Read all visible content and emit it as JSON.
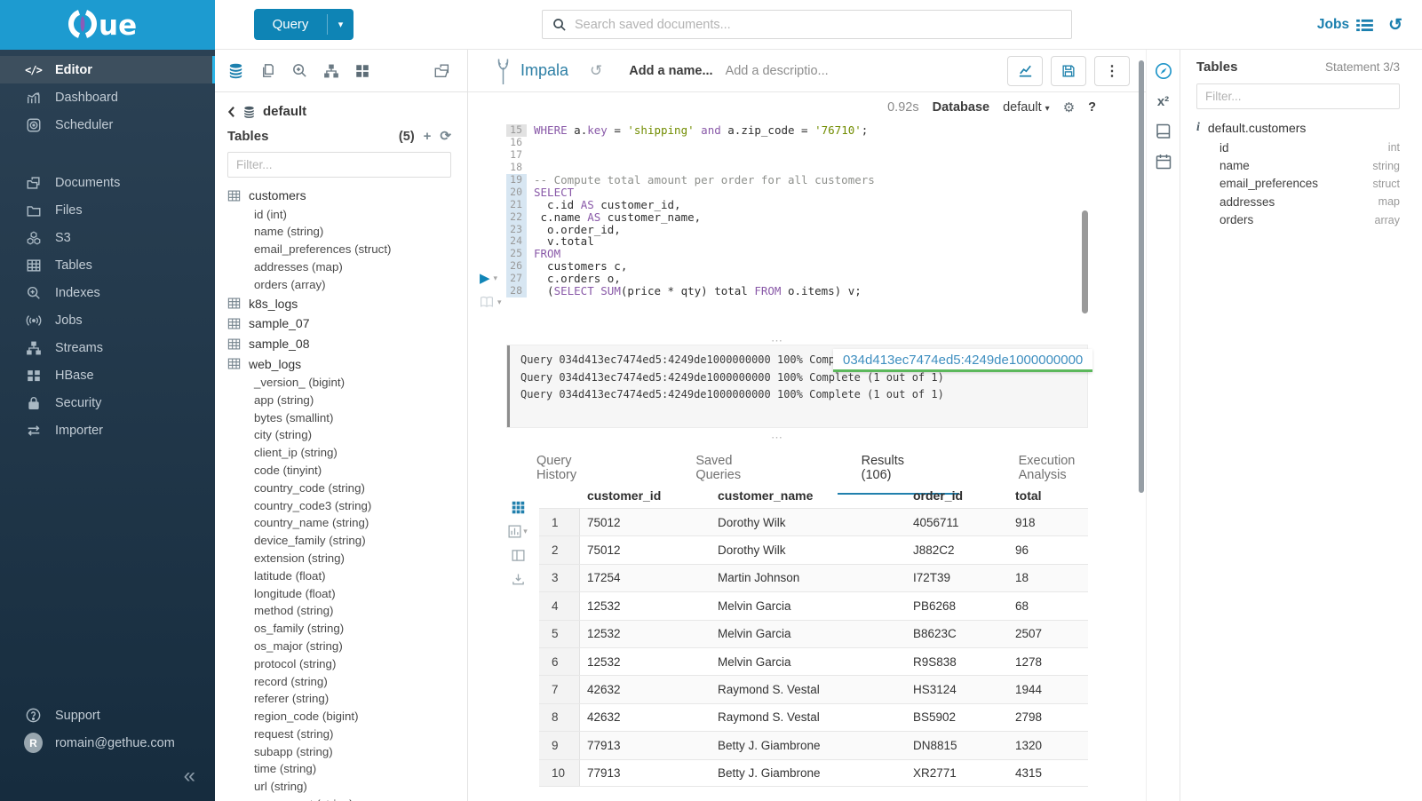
{
  "icons": {
    "caret_down": "▾",
    "ellipsis_v": "⋮",
    "resize_dots": "⋯",
    "history": "↺",
    "gear": "⚙",
    "help": "?",
    "collapse": "«",
    "plus": "+",
    "refresh": "⟳",
    "play": "▶",
    "info": "i",
    "code_tag": "</>",
    "jobs_waves": "((•))",
    "x_squared": "x²"
  },
  "colors": {
    "header_blue": "#1d9bd0",
    "button_blue": "#0e84b5",
    "link_blue": "#1a7fae",
    "sidebar_top": "#2b4154",
    "sidebar_bottom": "#162c3e",
    "sql_keyword": "#8959a8",
    "sql_string": "#718c00",
    "sql_comment": "#8e908c",
    "tooltip_link": "#3f8fc0",
    "tooltip_underline": "#5cb85c",
    "active_tab_underline": "#2180ad"
  },
  "topbar": {
    "query_button": "Query",
    "search_placeholder": "Search saved documents...",
    "jobs_label": "Jobs"
  },
  "sidebar": {
    "items": [
      {
        "label": "Editor"
      },
      {
        "label": "Dashboard"
      },
      {
        "label": "Scheduler"
      },
      {
        "label": "Documents"
      },
      {
        "label": "Files"
      },
      {
        "label": "S3"
      },
      {
        "label": "Tables"
      },
      {
        "label": "Indexes"
      },
      {
        "label": "Jobs"
      },
      {
        "label": "Streams"
      },
      {
        "label": "HBase"
      },
      {
        "label": "Security"
      },
      {
        "label": "Importer"
      }
    ],
    "support_label": "Support",
    "user_email": "romain@gethue.com",
    "avatar_initial": "R"
  },
  "dbpanel": {
    "breadcrumb_db": "default",
    "title": "Tables",
    "count": "(5)",
    "filter_placeholder": "Filter...",
    "tree": [
      {
        "kind": "table",
        "label": "customers"
      },
      {
        "kind": "column",
        "label": "id (int)"
      },
      {
        "kind": "column",
        "label": "name (string)"
      },
      {
        "kind": "column",
        "label": "email_preferences (struct)"
      },
      {
        "kind": "column",
        "label": "addresses (map)"
      },
      {
        "kind": "column",
        "label": "orders (array)"
      },
      {
        "kind": "table",
        "label": "k8s_logs"
      },
      {
        "kind": "table",
        "label": "sample_07"
      },
      {
        "kind": "table",
        "label": "sample_08"
      },
      {
        "kind": "table",
        "label": "web_logs"
      },
      {
        "kind": "column",
        "label": "_version_ (bigint)"
      },
      {
        "kind": "column",
        "label": "app (string)"
      },
      {
        "kind": "column",
        "label": "bytes (smallint)"
      },
      {
        "kind": "column",
        "label": "city (string)"
      },
      {
        "kind": "column",
        "label": "client_ip (string)"
      },
      {
        "kind": "column",
        "label": "code (tinyint)"
      },
      {
        "kind": "column",
        "label": "country_code (string)"
      },
      {
        "kind": "column",
        "label": "country_code3 (string)"
      },
      {
        "kind": "column",
        "label": "country_name (string)"
      },
      {
        "kind": "column",
        "label": "device_family (string)"
      },
      {
        "kind": "column",
        "label": "extension (string)"
      },
      {
        "kind": "column",
        "label": "latitude (float)"
      },
      {
        "kind": "column",
        "label": "longitude (float)"
      },
      {
        "kind": "column",
        "label": "method (string)"
      },
      {
        "kind": "column",
        "label": "os_family (string)"
      },
      {
        "kind": "column",
        "label": "os_major (string)"
      },
      {
        "kind": "column",
        "label": "protocol (string)"
      },
      {
        "kind": "column",
        "label": "record (string)"
      },
      {
        "kind": "column",
        "label": "referer (string)"
      },
      {
        "kind": "column",
        "label": "region_code (bigint)"
      },
      {
        "kind": "column",
        "label": "request (string)"
      },
      {
        "kind": "column",
        "label": "subapp (string)"
      },
      {
        "kind": "column",
        "label": "time (string)"
      },
      {
        "kind": "column",
        "label": "url (string)"
      },
      {
        "kind": "column",
        "label": "user_agent (string)"
      }
    ]
  },
  "editor": {
    "engine": "Impala",
    "name_placeholder": "Add a name...",
    "description_placeholder": "Add a descriptio...",
    "exec_time": "0.92s",
    "database_label": "Database",
    "database_value": "default",
    "code_lines": [
      {
        "n": "15",
        "hl": "cur",
        "text": "WHERE a.key = 'shipping' and a.zip_code = '76710';"
      },
      {
        "n": "16",
        "hl": "",
        "text": ""
      },
      {
        "n": "17",
        "hl": "",
        "text": ""
      },
      {
        "n": "18",
        "hl": "",
        "text": ""
      },
      {
        "n": "19",
        "hl": "stmt",
        "text": "-- Compute total amount per order for all customers"
      },
      {
        "n": "20",
        "hl": "stmt",
        "text": "SELECT"
      },
      {
        "n": "21",
        "hl": "stmt",
        "text": "  c.id AS customer_id,"
      },
      {
        "n": "22",
        "hl": "stmt",
        "text": " c.name AS customer_name,"
      },
      {
        "n": "23",
        "hl": "stmt",
        "text": "  o.order_id,"
      },
      {
        "n": "24",
        "hl": "stmt",
        "text": "  v.total"
      },
      {
        "n": "25",
        "hl": "stmt",
        "text": "FROM"
      },
      {
        "n": "26",
        "hl": "stmt",
        "text": "  customers c,"
      },
      {
        "n": "27",
        "hl": "stmt",
        "text": "  c.orders o,"
      },
      {
        "n": "28",
        "hl": "stmt",
        "text": "  (SELECT SUM(price * qty) total FROM o.items) v;"
      }
    ]
  },
  "logs": {
    "lines": [
      "Query 034d413ec7474ed5:4249de1000000000 100% Complete (1 out of 1)",
      "Query 034d413ec7474ed5:4249de1000000000 100% Complete (1 out of 1)",
      "Query 034d413ec7474ed5:4249de1000000000 100% Complete (1 out of 1)"
    ],
    "tooltip_text": "034d413ec7474ed5:4249de1000000000"
  },
  "tabs": [
    {
      "label": "Query History"
    },
    {
      "label": "Saved Queries"
    },
    {
      "label": "Results (106)"
    },
    {
      "label": "Execution Analysis"
    }
  ],
  "results": {
    "columns": [
      "customer_id",
      "customer_name",
      "order_id",
      "total"
    ],
    "rows": [
      [
        "1",
        "75012",
        "Dorothy Wilk",
        "4056711",
        "918"
      ],
      [
        "2",
        "75012",
        "Dorothy Wilk",
        "J882C2",
        "96"
      ],
      [
        "3",
        "17254",
        "Martin Johnson",
        "I72T39",
        "18"
      ],
      [
        "4",
        "12532",
        "Melvin Garcia",
        "PB6268",
        "68"
      ],
      [
        "5",
        "12532",
        "Melvin Garcia",
        "B8623C",
        "2507"
      ],
      [
        "6",
        "12532",
        "Melvin Garcia",
        "R9S838",
        "1278"
      ],
      [
        "7",
        "42632",
        "Raymond S. Vestal",
        "HS3124",
        "1944"
      ],
      [
        "8",
        "42632",
        "Raymond S. Vestal",
        "BS5902",
        "2798"
      ],
      [
        "9",
        "77913",
        "Betty J. Giambrone",
        "DN8815",
        "1320"
      ],
      [
        "10",
        "77913",
        "Betty J. Giambrone",
        "XR2771",
        "4315"
      ]
    ]
  },
  "assist": {
    "title": "Tables",
    "statement_counter": "Statement 3/3",
    "filter_placeholder": "Filter...",
    "table_name": "default.customers",
    "columns": [
      {
        "name": "id",
        "type": "int"
      },
      {
        "name": "name",
        "type": "string"
      },
      {
        "name": "email_preferences",
        "type": "struct"
      },
      {
        "name": "addresses",
        "type": "map"
      },
      {
        "name": "orders",
        "type": "array"
      }
    ]
  }
}
